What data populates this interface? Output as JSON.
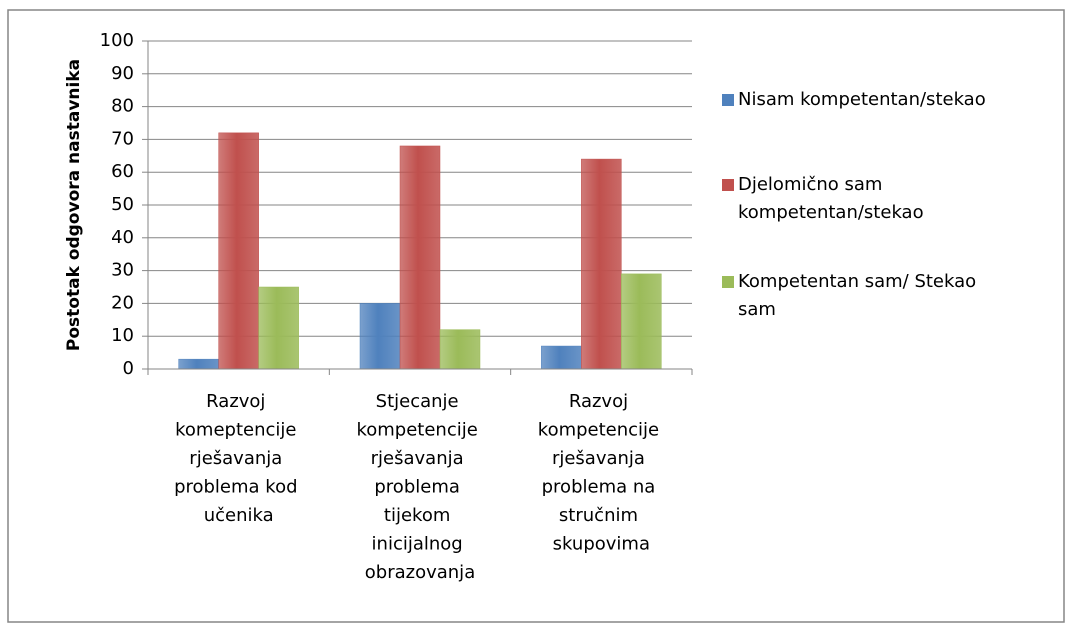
{
  "chart_data": {
    "type": "bar",
    "y_label": "Postotak odgovora nastavnika",
    "categories": [
      "Razvoj komeptencije rješavanja problema kod učenika",
      "Stjecanje kompetencije rješavanja problema tijekom inicijalnog obrazovanja",
      "Razvoj kompetencije rješavanja problema na stručnim skupovima"
    ],
    "series": [
      {
        "name": "Nisam kompetentan/stekao",
        "color": "#4f81bd",
        "values": [
          3,
          20,
          7
        ]
      },
      {
        "name": "Djelomično sam kompetentan/stekao",
        "color": "#c0504d",
        "values": [
          72,
          68,
          64
        ]
      },
      {
        "name": "Kompetentan sam/ Stekao sam",
        "color": "#9bbb59",
        "values": [
          25,
          12,
          29
        ]
      }
    ],
    "ylim": [
      0,
      100
    ],
    "yticks": [
      0,
      10,
      20,
      30,
      40,
      50,
      60,
      70,
      80,
      90,
      100
    ],
    "grid": true,
    "legend": "right"
  }
}
